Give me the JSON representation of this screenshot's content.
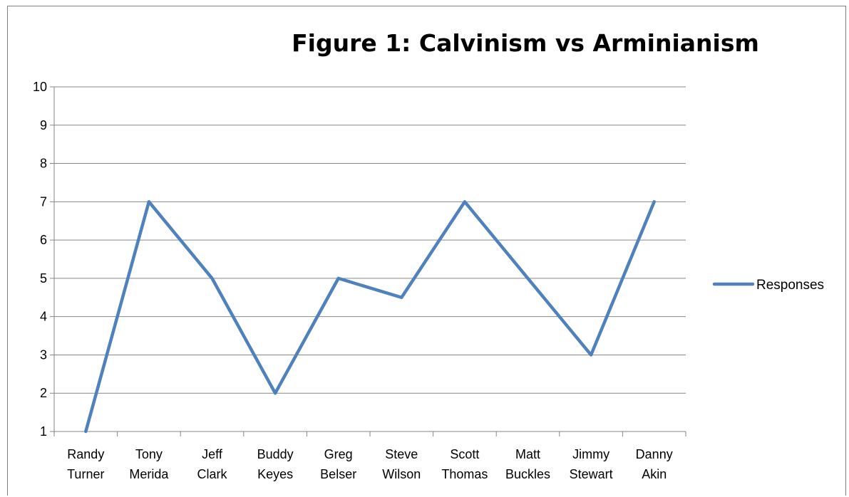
{
  "chart_data": {
    "type": "line",
    "title": "Figure 1: Calvinism vs Arminianism",
    "xlabel": "",
    "ylabel": "",
    "categories": [
      [
        "Randy",
        "Turner"
      ],
      [
        "Tony",
        "Merida"
      ],
      [
        "Jeff",
        "Clark"
      ],
      [
        "Buddy",
        "Keyes"
      ],
      [
        "Greg",
        "Belser"
      ],
      [
        "Steve",
        "Wilson"
      ],
      [
        "Scott",
        "Thomas"
      ],
      [
        "Matt",
        "Buckles"
      ],
      [
        "Jimmy",
        "Stewart"
      ],
      [
        "Danny",
        "Akin"
      ]
    ],
    "series": [
      {
        "name": "Responses",
        "color": "#4F81BD",
        "values": [
          1,
          7,
          5,
          2,
          5,
          4.5,
          7,
          5,
          3,
          7
        ]
      }
    ],
    "ylim": [
      1,
      10
    ],
    "yticks": [
      1,
      2,
      3,
      4,
      5,
      6,
      7,
      8,
      9,
      10
    ],
    "grid": true,
    "legend_position": "right",
    "colors": {
      "line": "#4F81BD",
      "grid": "#868686",
      "axis": "#868686"
    }
  }
}
